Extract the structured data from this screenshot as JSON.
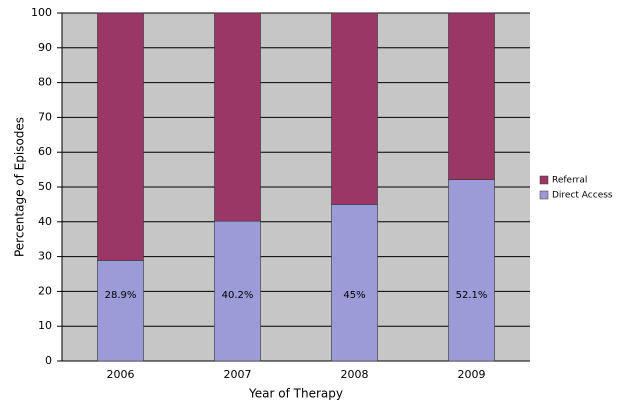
{
  "chart_data": {
    "type": "stacked-bar",
    "x_label": "Year of Therapy",
    "y_label": "Percentage of Episodes",
    "categories": [
      "2006",
      "2007",
      "2008",
      "2009"
    ],
    "series": [
      {
        "name": "Direct Access",
        "color": "#9b9bd7",
        "values": [
          28.9,
          40.2,
          45,
          52.1
        ],
        "value_labels": [
          "28.9%",
          "40.2%",
          "45%",
          "52.1%"
        ]
      },
      {
        "name": "Referral",
        "color": "#9b3766",
        "values": [
          71.1,
          59.8,
          55,
          47.9
        ]
      }
    ],
    "ylim": [
      0,
      100
    ],
    "yticks": [
      0,
      10,
      20,
      30,
      40,
      50,
      60,
      70,
      80,
      90,
      100
    ],
    "grid": true,
    "legend": "right"
  }
}
